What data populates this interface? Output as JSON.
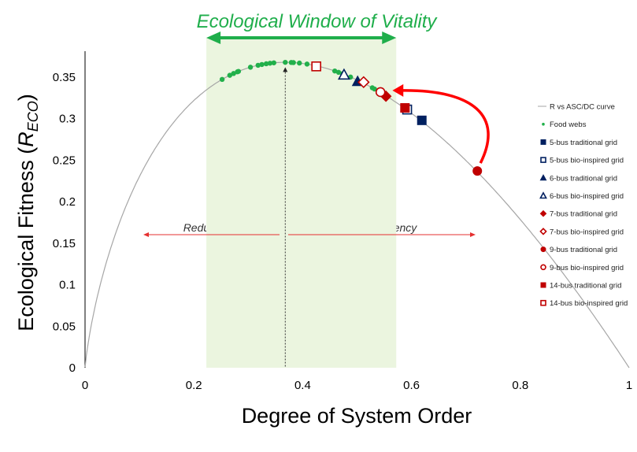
{
  "chart_data": {
    "type": "scatter",
    "title": "Ecological Window of Vitality",
    "xlabel": "Degree of System Order",
    "ylabel_main": "Ecological Fitness (",
    "ylabel_var": "R",
    "ylabel_sub": "ECO",
    "ylabel_end": ")",
    "xlim": [
      0,
      1
    ],
    "ylim": [
      0,
      0.37
    ],
    "xticks": [
      0,
      0.2,
      0.4,
      0.6,
      0.8,
      1
    ],
    "xtick_labels": [
      "0",
      "0.2",
      "0.4",
      "0.6",
      "0.8",
      "1"
    ],
    "yticks": [
      0,
      0.05,
      0.1,
      0.15,
      0.2,
      0.25,
      0.3,
      0.35
    ],
    "ytick_labels": [
      "0",
      "0.05",
      "0.1",
      "0.15",
      "0.2",
      "0.25",
      "0.3",
      "0.35"
    ],
    "grid": false,
    "legend_position": "right",
    "window_range": [
      0.223,
      0.572
    ],
    "optimum_x": 0.368,
    "annotations": {
      "redundancy": "Redundancy",
      "constraints": "Constraints/Efficiency"
    },
    "colors": {
      "navy": "#002060",
      "red": "#c00000",
      "green": "#22b04b",
      "window": "#ebf5df",
      "curve": "#a6a6a6",
      "arrow": "#ff0000"
    },
    "curve": {
      "name": "R vs ASC/DC curve",
      "formula": "-x*ln(x)"
    },
    "food_webs": {
      "name": "Food webs",
      "x": [
        0.252,
        0.266,
        0.273,
        0.28,
        0.282,
        0.304,
        0.318,
        0.325,
        0.333,
        0.34,
        0.347,
        0.368,
        0.379,
        0.383,
        0.394,
        0.408,
        0.427,
        0.459,
        0.466,
        0.473,
        0.488,
        0.528,
        0.532
      ]
    },
    "series": [
      {
        "name": "5-bus traditional grid",
        "marker": "square",
        "fill": true,
        "color": "navy",
        "x": 0.619,
        "y": 0.298
      },
      {
        "name": "5-bus bio-inspired grid",
        "marker": "square",
        "fill": false,
        "color": "navy",
        "x": 0.592,
        "y": 0.311
      },
      {
        "name": "6-bus traditional grid",
        "marker": "triangle",
        "fill": true,
        "color": "navy",
        "x": 0.501,
        "y": 0.345
      },
      {
        "name": "6-bus bio-inspired grid",
        "marker": "triangle",
        "fill": false,
        "color": "navy",
        "x": 0.476,
        "y": 0.353
      },
      {
        "name": "7-bus traditional grid",
        "marker": "diamond",
        "fill": true,
        "color": "red",
        "x": 0.553,
        "y": 0.327
      },
      {
        "name": "7-bus bio-inspired grid",
        "marker": "diamond",
        "fill": false,
        "color": "red",
        "x": 0.512,
        "y": 0.344
      },
      {
        "name": "9-bus traditional grid",
        "marker": "circle",
        "fill": true,
        "color": "red",
        "x": 0.721,
        "y": 0.237
      },
      {
        "name": "9-bus bio-inspired grid",
        "marker": "circle",
        "fill": false,
        "color": "red",
        "x": 0.543,
        "y": 0.332
      },
      {
        "name": "14-bus traditional grid",
        "marker": "square",
        "fill": true,
        "color": "red",
        "x": 0.588,
        "y": 0.313
      },
      {
        "name": "14-bus bio-inspired grid",
        "marker": "square",
        "fill": false,
        "color": "red",
        "x": 0.425,
        "y": 0.363
      }
    ]
  }
}
